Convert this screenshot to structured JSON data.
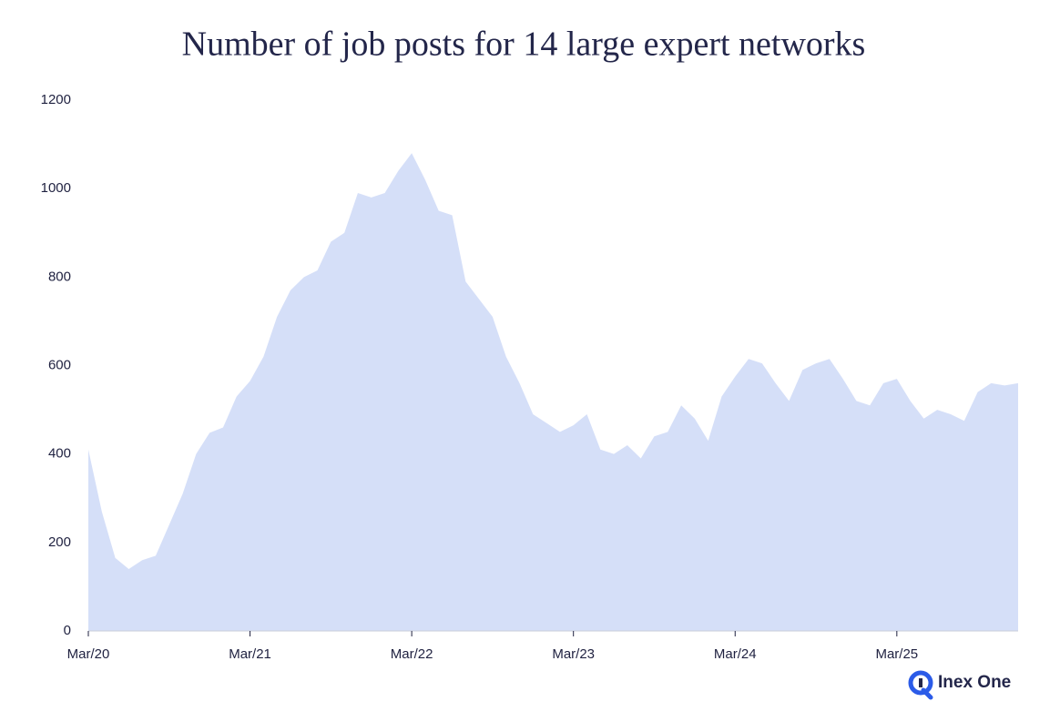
{
  "chart_data": {
    "type": "area",
    "title": "Number of job posts for 14 large expert networks",
    "categories": [
      "Mar/20",
      null,
      null,
      null,
      null,
      null,
      null,
      null,
      null,
      null,
      null,
      null,
      "Mar/21",
      null,
      null,
      null,
      null,
      null,
      null,
      null,
      null,
      null,
      null,
      null,
      "Mar/22",
      null,
      null,
      null,
      null,
      null,
      null,
      null,
      null,
      null,
      null,
      null,
      "Mar/23",
      null,
      null,
      null,
      null,
      null,
      null,
      null,
      null,
      null,
      null,
      null,
      "Mar/24",
      null,
      null,
      null,
      null,
      null,
      null,
      null,
      null,
      null,
      null,
      null,
      "Mar/25",
      null,
      null,
      null,
      null,
      null,
      null,
      null,
      null,
      null
    ],
    "values": [
      410,
      270,
      165,
      140,
      160,
      170,
      240,
      310,
      400,
      448,
      460,
      530,
      565,
      620,
      710,
      770,
      800,
      815,
      880,
      900,
      990,
      980,
      990,
      1040,
      1080,
      1020,
      950,
      940,
      790,
      750,
      710,
      620,
      560,
      490,
      470,
      450,
      465,
      490,
      410,
      400,
      420,
      390,
      440,
      450,
      510,
      480,
      430,
      530,
      575,
      615,
      605,
      560,
      520,
      590,
      605,
      615,
      570,
      520,
      510,
      560,
      570,
      520,
      480,
      500,
      490,
      475,
      540,
      560,
      555,
      560
    ],
    "color": "#d5dff8",
    "ylim": [
      0,
      1200
    ],
    "yticks": [
      0,
      200,
      400,
      600,
      800,
      1000,
      1200
    ],
    "grid": false
  },
  "logo": "Inex One"
}
